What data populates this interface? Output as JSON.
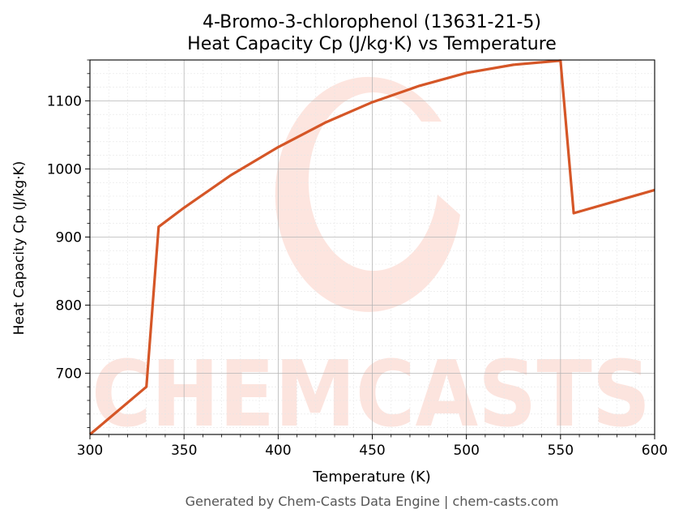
{
  "chart_data": {
    "type": "line",
    "title_line1": "4-Bromo-3-chlorophenol (13631-21-5)",
    "title_line2": "Heat Capacity Cp (J/kg·K) vs Temperature",
    "xlabel": "Temperature (K)",
    "ylabel": "Heat Capacity Cp (J/kg·K)",
    "xlim": [
      300,
      600
    ],
    "ylim": [
      610,
      1160
    ],
    "x_ticks": [
      300,
      350,
      400,
      450,
      500,
      550,
      600
    ],
    "y_ticks": [
      700,
      800,
      900,
      1000,
      1100
    ],
    "grid": true,
    "minor_grid": true,
    "series": [
      {
        "color": "#d55627",
        "points": [
          [
            300,
            610
          ],
          [
            330,
            680
          ],
          [
            336.5,
            915
          ],
          [
            350,
            943
          ],
          [
            375,
            991
          ],
          [
            400,
            1032
          ],
          [
            425,
            1068
          ],
          [
            450,
            1098
          ],
          [
            475,
            1122
          ],
          [
            500,
            1141
          ],
          [
            525,
            1153
          ],
          [
            550,
            1159
          ],
          [
            557,
            935
          ],
          [
            600,
            969
          ]
        ]
      }
    ]
  },
  "footer": "Generated by Chem-Casts Data Engine | chem-casts.com",
  "watermark": "CHEMCASTS"
}
